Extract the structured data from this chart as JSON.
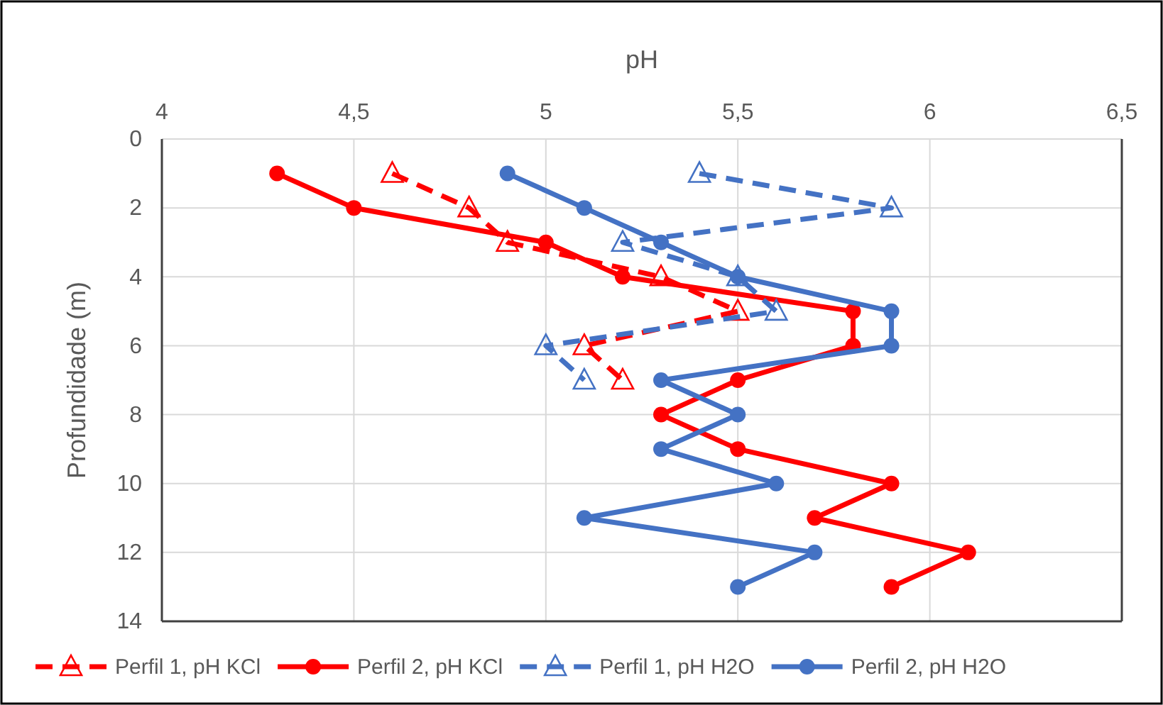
{
  "chart_data": {
    "type": "line",
    "xlabel": "pH",
    "ylabel": "Profundidade (m)",
    "xlim": [
      4,
      6.5
    ],
    "xticks": [
      4,
      {
        "value": 4.5,
        "label": "4,5"
      },
      5,
      {
        "value": 5.5,
        "label": "5,5"
      },
      6,
      {
        "value": 6.5,
        "label": "6,5"
      }
    ],
    "ylim": [
      14,
      0
    ],
    "yticks": [
      0,
      2,
      4,
      6,
      8,
      10,
      12,
      14
    ],
    "grid": true,
    "legend": "bottom",
    "series": [
      {
        "name": "Perfil 1, pH KCl",
        "color": "#ff0000",
        "marker": "triangle",
        "line_style": "dashed",
        "x": [
          4.6,
          4.8,
          4.9,
          5.3,
          5.5,
          5.1,
          5.2
        ],
        "values": [
          1,
          2,
          3,
          4,
          5,
          6,
          7
        ]
      },
      {
        "name": "Perfil 2, pH KCl",
        "color": "#ff0000",
        "marker": "circle",
        "line_style": "solid",
        "x": [
          4.3,
          4.5,
          5.0,
          5.2,
          5.8,
          5.8,
          5.5,
          5.3,
          5.5,
          5.9,
          5.7,
          6.1,
          5.9
        ],
        "values": [
          1,
          2,
          3,
          4,
          5,
          6,
          7,
          8,
          9,
          10,
          11,
          12,
          13
        ]
      },
      {
        "name": "Perfil 1, pH H2O",
        "color": "#4472c4",
        "marker": "triangle",
        "line_style": "dashed",
        "x": [
          5.4,
          5.9,
          5.2,
          5.5,
          5.6,
          5.0,
          5.1
        ],
        "values": [
          1,
          2,
          3,
          4,
          5,
          6,
          7
        ]
      },
      {
        "name": "Perfil 2, pH H2O",
        "color": "#4472c4",
        "marker": "circle",
        "line_style": "solid",
        "x": [
          4.9,
          5.1,
          5.3,
          5.5,
          5.9,
          5.9,
          5.3,
          5.5,
          5.3,
          5.6,
          5.1,
          5.7,
          5.5
        ],
        "values": [
          1,
          2,
          3,
          4,
          5,
          6,
          7,
          8,
          9,
          10,
          11,
          12,
          13
        ]
      }
    ]
  }
}
